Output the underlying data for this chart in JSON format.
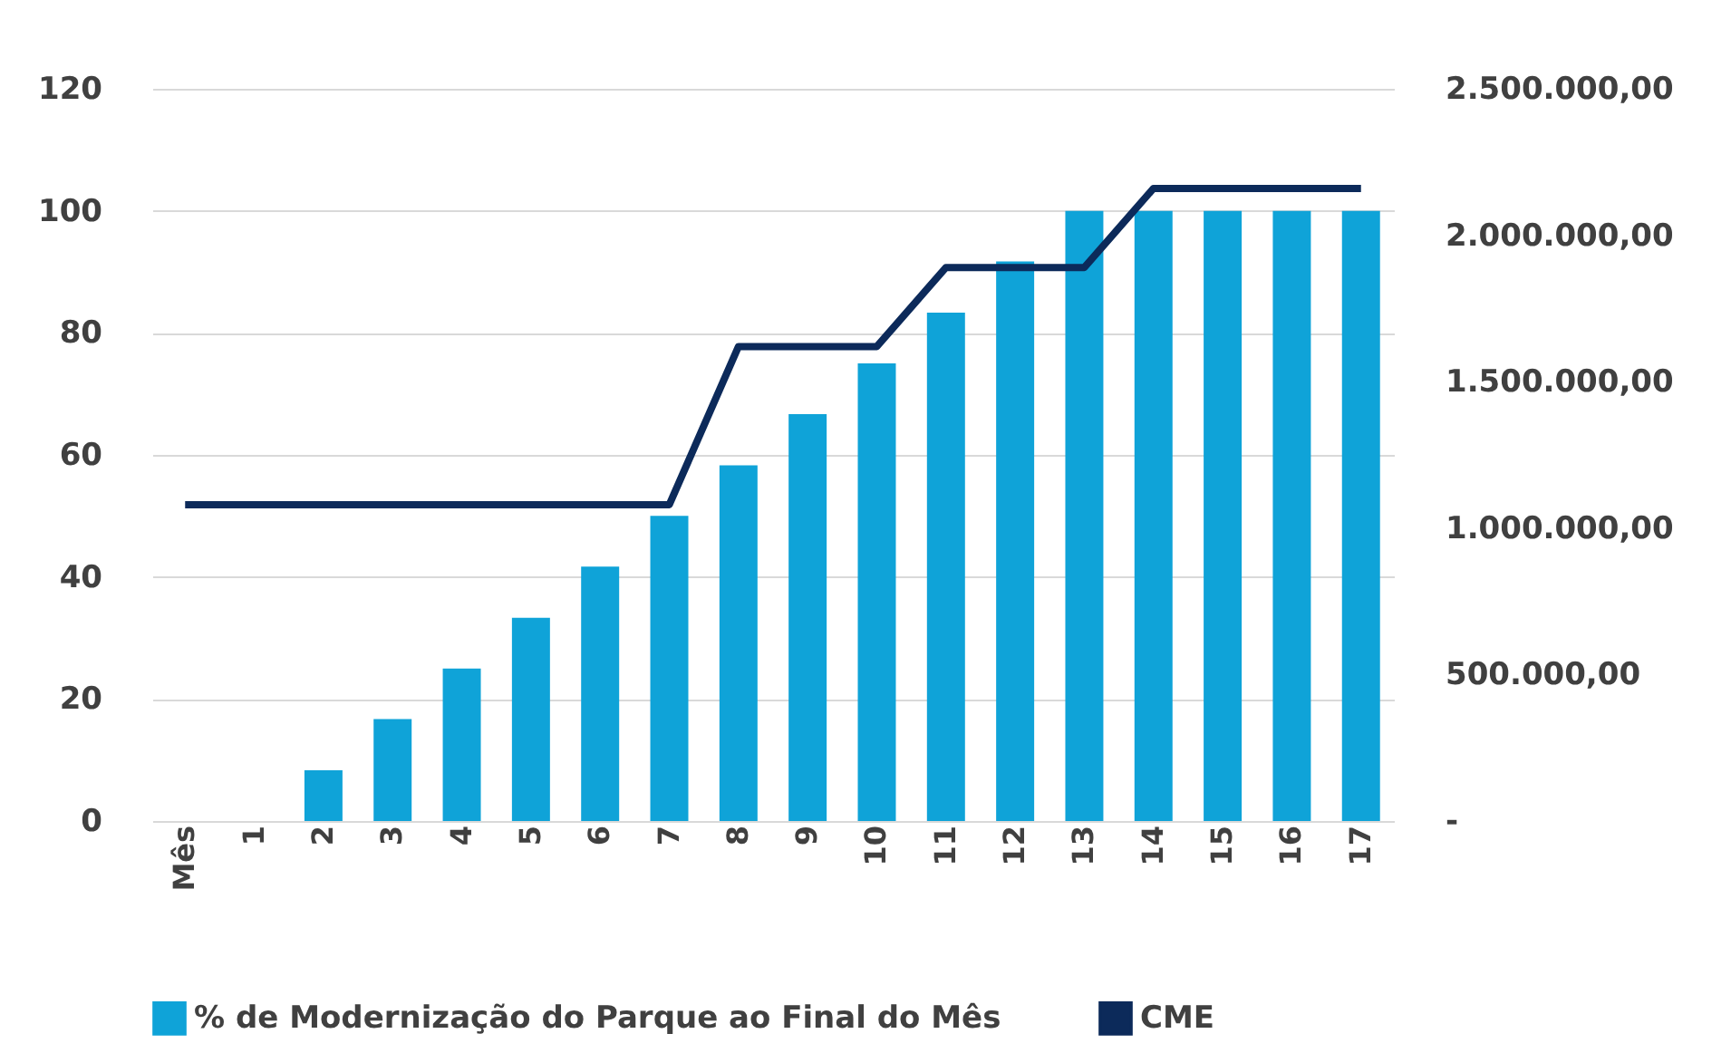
{
  "chart_data": {
    "type": "bar",
    "categories": [
      "Mês",
      "1",
      "2",
      "3",
      "4",
      "5",
      "6",
      "7",
      "8",
      "9",
      "10",
      "11",
      "12",
      "13",
      "14",
      "15",
      "16",
      "17"
    ],
    "series": [
      {
        "name": "% de Modernização do Parque ao Final do Mês",
        "color": "#0fa3d8",
        "values": [
          null,
          0,
          8.3,
          16.7,
          25,
          33.3,
          41.7,
          50,
          58.3,
          66.7,
          75,
          83.3,
          91.7,
          100,
          100,
          100,
          100,
          100
        ]
      },
      {
        "name": "CME",
        "type": "line",
        "axis": "y2",
        "color": "#0c2a5a",
        "values": [
          1080000,
          1080000,
          1080000,
          1080000,
          1080000,
          1080000,
          1080000,
          1080000,
          1620000,
          1620000,
          1620000,
          1890000,
          1890000,
          1890000,
          2160000,
          2160000,
          2160000,
          2160000
        ]
      }
    ],
    "ylim": [
      0,
      120
    ],
    "yticks": [
      0,
      20,
      40,
      60,
      80,
      100,
      120
    ],
    "y2lim": [
      0,
      2500000
    ],
    "y2ticks": [
      {
        "value": 0,
        "label": "-"
      },
      {
        "value": 500000,
        "label": "500.000,00"
      },
      {
        "value": 1000000,
        "label": "1.000.000,00"
      },
      {
        "value": 1500000,
        "label": "1.500.000,00"
      },
      {
        "value": 2000000,
        "label": "2.000.000,00"
      },
      {
        "value": 2500000,
        "label": "2.500.000,00"
      }
    ],
    "grid": "y",
    "legend": "bottom",
    "marker": "none",
    "line_style": "solid"
  }
}
